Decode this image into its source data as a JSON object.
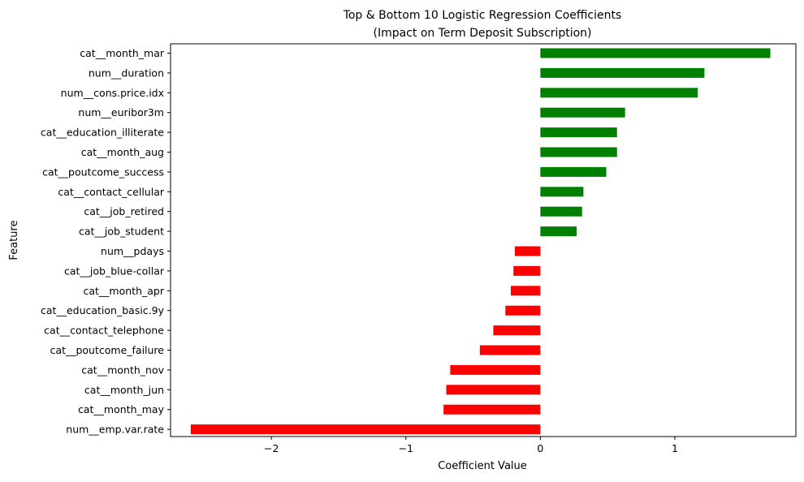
{
  "chart_data": {
    "type": "bar",
    "orientation": "horizontal",
    "title": "Top & Bottom 10 Logistic Regression Coefficients",
    "subtitle": "(Impact on Term Deposit Subscription)",
    "xlabel": "Coefficient Value",
    "ylabel": "Feature",
    "xlim": [
      -2.75,
      1.9
    ],
    "xticks": [
      -2,
      -1,
      0,
      1
    ],
    "xtick_labels": [
      "−2",
      "−1",
      "0",
      "1"
    ],
    "grid": false,
    "colors": {
      "positive": "#008000",
      "negative": "#ff0000"
    },
    "categories": [
      "cat__month_mar",
      "num__duration",
      "num__cons.price.idx",
      "num__euribor3m",
      "cat__education_illiterate",
      "cat__month_aug",
      "cat__poutcome_success",
      "cat__contact_cellular",
      "cat__job_retired",
      "cat__job_student",
      "num__pdays",
      "cat__job_blue-collar",
      "cat__month_apr",
      "cat__education_basic.9y",
      "cat__contact_telephone",
      "cat__poutcome_failure",
      "cat__month_nov",
      "cat__month_jun",
      "cat__month_may",
      "num__emp.var.rate"
    ],
    "values": [
      1.71,
      1.22,
      1.17,
      0.63,
      0.57,
      0.57,
      0.49,
      0.32,
      0.31,
      0.27,
      -0.19,
      -0.2,
      -0.22,
      -0.26,
      -0.35,
      -0.45,
      -0.67,
      -0.7,
      -0.72,
      -2.6
    ]
  }
}
